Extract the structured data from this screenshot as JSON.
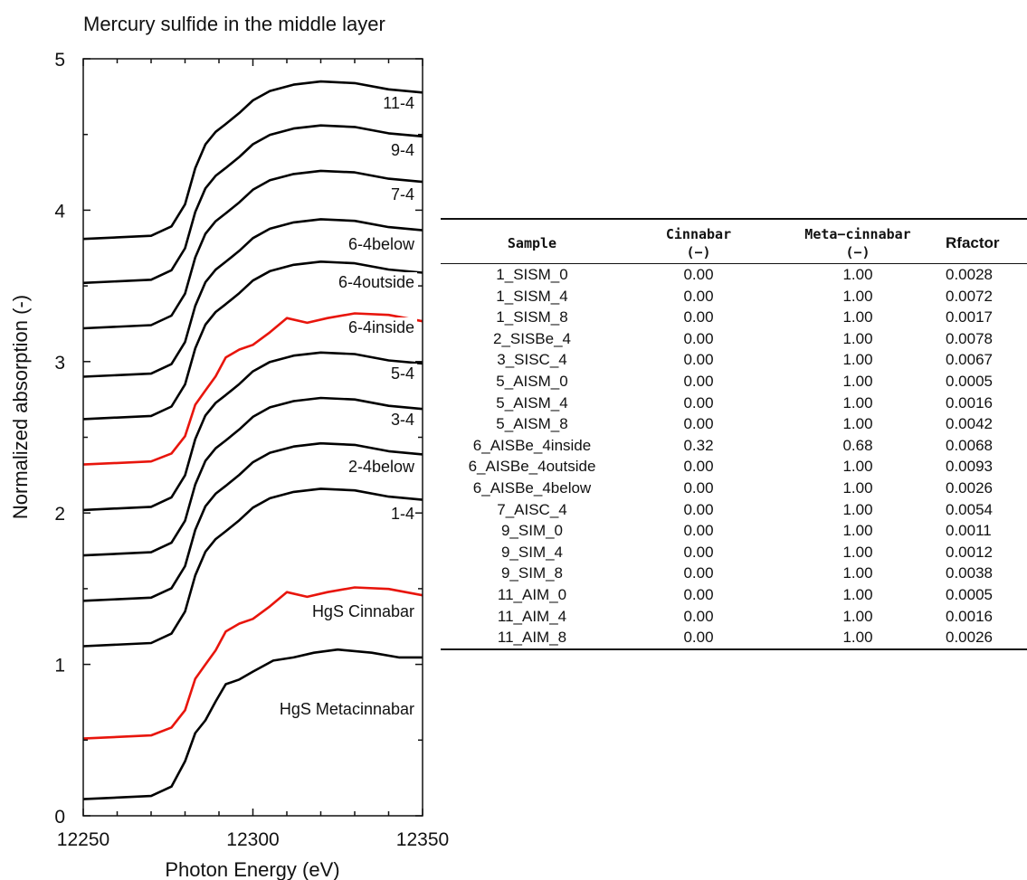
{
  "chart_data": [
    {
      "type": "line",
      "title": "Mercury sulfide in the middle layer",
      "xlabel": "Photon Energy (eV)",
      "ylabel": "Normalized absorption (-)",
      "xlim": [
        12250,
        12350
      ],
      "ylim": [
        0,
        5
      ],
      "x_ticks": [
        "12250",
        "12300",
        "12350"
      ],
      "y_ticks": [
        "0",
        "1",
        "2",
        "3",
        "4",
        "5"
      ],
      "legend": "curve labels placed at right end of each curve",
      "series": [
        {
          "name": "11-4",
          "offset": 3.81,
          "shape": "sample",
          "color": "#000000"
        },
        {
          "name": "9-4",
          "offset": 3.52,
          "shape": "sample",
          "color": "#000000"
        },
        {
          "name": "7-4",
          "offset": 3.22,
          "shape": "sample",
          "color": "#000000"
        },
        {
          "name": "6-4below",
          "offset": 2.9,
          "shape": "sample",
          "color": "#000000"
        },
        {
          "name": "6-4outside",
          "offset": 2.62,
          "shape": "sample",
          "color": "#000000"
        },
        {
          "name": "6-4inside",
          "offset": 2.32,
          "shape": "cinnabar",
          "color": "#e8150c"
        },
        {
          "name": "5-4",
          "offset": 2.02,
          "shape": "sample",
          "color": "#000000"
        },
        {
          "name": "3-4",
          "offset": 1.72,
          "shape": "sample",
          "color": "#000000"
        },
        {
          "name": "2-4below",
          "offset": 1.42,
          "shape": "sample",
          "color": "#000000"
        },
        {
          "name": "1-4",
          "offset": 1.12,
          "shape": "sample",
          "color": "#000000"
        },
        {
          "name": "HgS Cinnabar",
          "offset": 0.51,
          "shape": "cinnabar",
          "color": "#e8150c"
        },
        {
          "name": "HgS Metacinnabar",
          "offset": 0.11,
          "shape": "meta",
          "color": "#000000"
        }
      ]
    },
    {
      "type": "table",
      "columns": [
        {
          "line1": "Sample",
          "line2": ""
        },
        {
          "line1": "Cinnabar",
          "line2": "(−)"
        },
        {
          "line1": "Meta−cinnabar",
          "line2": "(−)"
        },
        {
          "line1": "Rfactor",
          "line2": ""
        }
      ],
      "rows": [
        [
          "1_SISM_0",
          "0.00",
          "1.00",
          "0.0028"
        ],
        [
          "1_SISM_4",
          "0.00",
          "1.00",
          "0.0072"
        ],
        [
          "1_SISM_8",
          "0.00",
          "1.00",
          "0.0017"
        ],
        [
          "2_SISBe_4",
          "0.00",
          "1.00",
          "0.0078"
        ],
        [
          "3_SISC_4",
          "0.00",
          "1.00",
          "0.0067"
        ],
        [
          "5_AISM_0",
          "0.00",
          "1.00",
          "0.0005"
        ],
        [
          "5_AISM_4",
          "0.00",
          "1.00",
          "0.0016"
        ],
        [
          "5_AISM_8",
          "0.00",
          "1.00",
          "0.0042"
        ],
        [
          "6_AISBe_4inside",
          "0.32",
          "0.68",
          "0.0068"
        ],
        [
          "6_AISBe_4outside",
          "0.00",
          "1.00",
          "0.0093"
        ],
        [
          "6_AISBe_4below",
          "0.00",
          "1.00",
          "0.0026"
        ],
        [
          "7_AISC_4",
          "0.00",
          "1.00",
          "0.0054"
        ],
        [
          "9_SIM_0",
          "0.00",
          "1.00",
          "0.0011"
        ],
        [
          "9_SIM_4",
          "0.00",
          "1.00",
          "0.0012"
        ],
        [
          "9_SIM_8",
          "0.00",
          "1.00",
          "0.0038"
        ],
        [
          "11_AIM_0",
          "0.00",
          "1.00",
          "0.0005"
        ],
        [
          "11_AIM_4",
          "0.00",
          "1.00",
          "0.0016"
        ],
        [
          "11_AIM_8",
          "0.00",
          "1.00",
          "0.0026"
        ]
      ]
    }
  ]
}
